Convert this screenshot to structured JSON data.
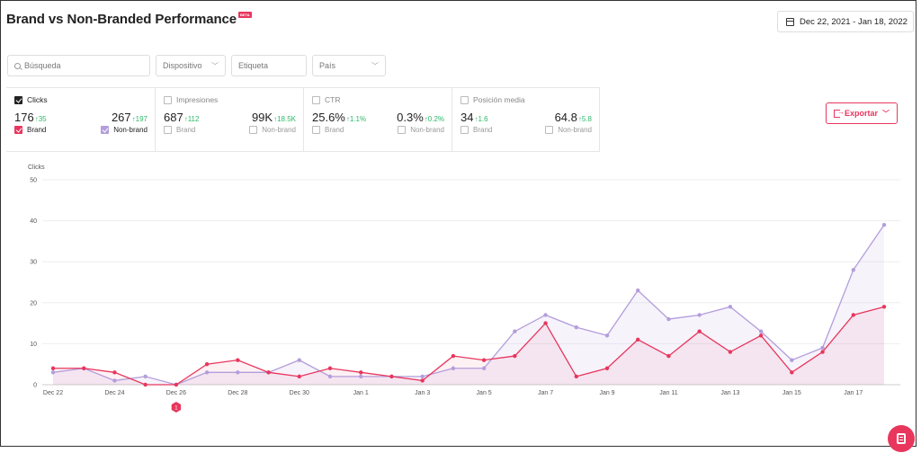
{
  "page": {
    "title": "Brand vs Non-Branded Performance",
    "badge": "BETA",
    "date_range": "Dec 22, 2021 - Jan 18, 2022",
    "export_label": "Exportar"
  },
  "filters": {
    "search_placeholder": "Búsqueda",
    "device_label": "Dispositivo",
    "tag_label": "Etiqueta",
    "country_label": "País"
  },
  "metrics": [
    {
      "label": "Clicks",
      "checked": true,
      "brand_value": "176",
      "brand_delta": "↑35",
      "nonbrand_value": "267",
      "nonbrand_delta": "↑197",
      "brand_label": "Brand",
      "nonbrand_label": "Non-brand"
    },
    {
      "label": "Impresiones",
      "checked": false,
      "brand_value": "687",
      "brand_delta": "↑112",
      "nonbrand_value": "99K",
      "nonbrand_delta": "↑18.5K",
      "brand_label": "Brand",
      "nonbrand_label": "Non-brand"
    },
    {
      "label": "CTR",
      "checked": false,
      "brand_value": "25.6%",
      "brand_delta": "↑1.1%",
      "nonbrand_value": "0.3%",
      "nonbrand_delta": "↑0.2%",
      "brand_label": "Brand",
      "nonbrand_label": "Non-brand"
    },
    {
      "label": "Posición media",
      "checked": false,
      "brand_value": "34",
      "brand_delta": "↑1.6",
      "nonbrand_value": "64.8",
      "nonbrand_delta": "↑5.8",
      "brand_label": "Brand",
      "nonbrand_label": "Non-brand"
    }
  ],
  "colors": {
    "brand": "#e8365d",
    "nonbrand": "#b39ddb",
    "up": "#2eb86a"
  },
  "annotation_marker": "1",
  "chart_data": {
    "type": "area",
    "ylabel": "Clicks",
    "ylim": [
      0,
      50
    ],
    "yticks": [
      0,
      10,
      20,
      30,
      40,
      50
    ],
    "grid": true,
    "x": [
      "Dec 22",
      "Dec 23",
      "Dec 24",
      "Dec 25",
      "Dec 26",
      "Dec 27",
      "Dec 28",
      "Dec 29",
      "Dec 30",
      "Dec 31",
      "Jan 1",
      "Jan 2",
      "Jan 3",
      "Jan 4",
      "Jan 5",
      "Jan 6",
      "Jan 7",
      "Jan 8",
      "Jan 9",
      "Jan 10",
      "Jan 11",
      "Jan 12",
      "Jan 13",
      "Jan 14",
      "Jan 15",
      "Jan 16",
      "Jan 17",
      "Jan 18"
    ],
    "xtick_labels": [
      "Dec 22",
      "Dec 24",
      "Dec 26",
      "Dec 28",
      "Dec 30",
      "Jan 1",
      "Jan 3",
      "Jan 5",
      "Jan 7",
      "Jan 9",
      "Jan 11",
      "Jan 13",
      "Jan 15",
      "Jan 17"
    ],
    "series": [
      {
        "name": "Non-brand",
        "color": "#b39ddb",
        "values": [
          3,
          4,
          1,
          2,
          0,
          3,
          3,
          3,
          6,
          2,
          2,
          2,
          2,
          4,
          4,
          13,
          17,
          14,
          12,
          23,
          16,
          17,
          19,
          13,
          6,
          9,
          28,
          39
        ]
      },
      {
        "name": "Brand",
        "color": "#e8365d",
        "values": [
          4,
          4,
          3,
          0,
          0,
          5,
          6,
          3,
          2,
          4,
          3,
          2,
          1,
          7,
          6,
          7,
          15,
          2,
          4,
          11,
          7,
          13,
          8,
          12,
          3,
          8,
          17,
          19
        ]
      }
    ]
  }
}
